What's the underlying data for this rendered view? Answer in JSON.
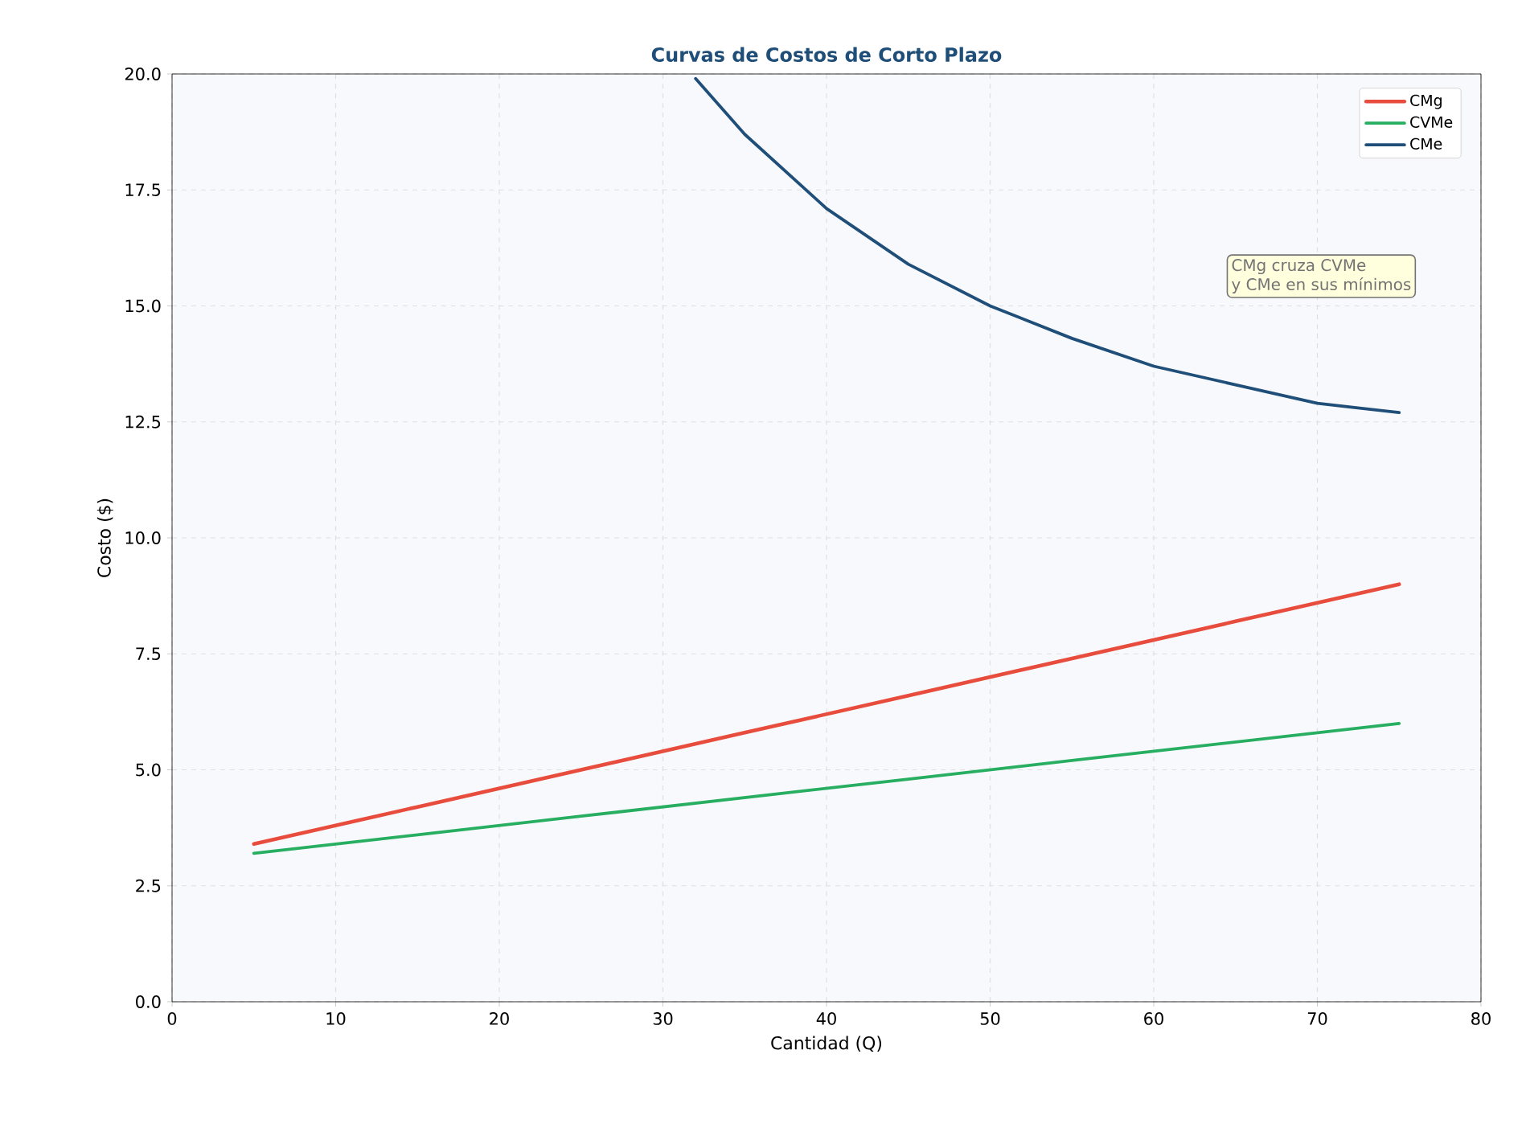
{
  "chart_data": {
    "type": "line",
    "title": "Curvas de Costos de Corto Plazo",
    "xlabel": "Cantidad (Q)",
    "ylabel": "Costo ($)",
    "xlim": [
      0,
      80
    ],
    "ylim": [
      0,
      20
    ],
    "xticks": [
      0,
      10,
      20,
      30,
      40,
      50,
      60,
      70,
      80
    ],
    "yticks": [
      {
        "value": 0,
        "label": "0.0"
      },
      {
        "value": 2.5,
        "label": "2.5"
      },
      {
        "value": 5,
        "label": "5.0"
      },
      {
        "value": 7.5,
        "label": "7.5"
      },
      {
        "value": 10,
        "label": "10.0"
      },
      {
        "value": 12.5,
        "label": "12.5"
      },
      {
        "value": 15,
        "label": "15.0"
      },
      {
        "value": 17.5,
        "label": "17.5"
      },
      {
        "value": 20,
        "label": "20.0"
      }
    ],
    "grid": true,
    "legend": "top right",
    "series": [
      {
        "name": "CMg",
        "color": "#e74c3c",
        "x": [
          5,
          15,
          25,
          35,
          45,
          55,
          65,
          75
        ],
        "values": [
          3.4,
          4.2,
          5.0,
          5.8,
          6.6,
          7.4,
          8.2,
          9.0
        ]
      },
      {
        "name": "CVMe",
        "color": "#27ae60",
        "x": [
          5,
          15,
          25,
          35,
          45,
          55,
          65,
          75
        ],
        "values": [
          3.2,
          3.6,
          4.0,
          4.4,
          4.8,
          5.2,
          5.6,
          6.0
        ]
      },
      {
        "name": "CMe",
        "color": "#1f4e79",
        "x": [
          32,
          35,
          40,
          45,
          50,
          55,
          60,
          65,
          70,
          75
        ],
        "values": [
          19.9,
          18.7,
          17.1,
          15.9,
          15.0,
          14.3,
          13.7,
          13.3,
          12.9,
          12.7
        ]
      }
    ],
    "annotations": [
      "CMg cruza CVMe",
      "y CMe en sus mínimos"
    ]
  }
}
